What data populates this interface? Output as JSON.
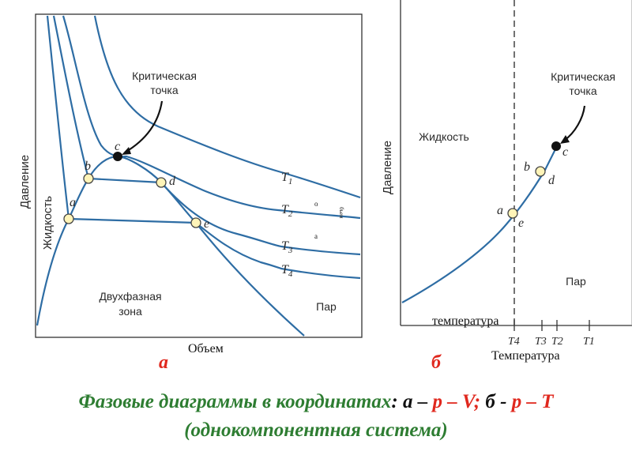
{
  "left_diagram": {
    "critical_point_title": [
      "Критическая",
      "точка"
    ],
    "y_axis_label": "Давление",
    "liquid_label": "Жидкость",
    "two_phase_label": [
      "Двухфазная",
      "зона"
    ],
    "vapor_label": "Пар",
    "x_axis_label": "Объем",
    "points": [
      "a",
      "b",
      "c",
      "d",
      "e"
    ],
    "isotherms": [
      "T",
      "T",
      "T",
      "T"
    ],
    "isotherm_subscripts": [
      "1",
      "2",
      "3",
      "4"
    ],
    "glyph_o": "о",
    "glyph_a": "а",
    "glyph_vertical": "бъем",
    "panel_letter": "а"
  },
  "right_diagram": {
    "critical_point_title": [
      "Критическая",
      "точка"
    ],
    "y_axis_label": "Давление",
    "liquid_label": "Жидкость",
    "vapor_label": "Пар",
    "x_axis_label": "Температура",
    "x_axis_label_small": "температура",
    "points": [
      "a",
      "b",
      "c",
      "d",
      "e"
    ],
    "ticks": [
      "T4",
      "T3",
      "T2",
      "T1"
    ],
    "panel_letter": "б"
  },
  "caption": {
    "line1_title": "Фазовые диаграммы в координатах",
    "colon": ":",
    "part_a": "а",
    "dash1": " – ",
    "pv": "p – V;",
    "part_b": "б -",
    "pt": "p – T",
    "line2": "(однокомпонентная система)"
  },
  "colors": {
    "curve": "#2e6da4",
    "marker_fill": "#fff4b8",
    "title_green": "#2e7d32",
    "accent_red": "#e0281e"
  }
}
